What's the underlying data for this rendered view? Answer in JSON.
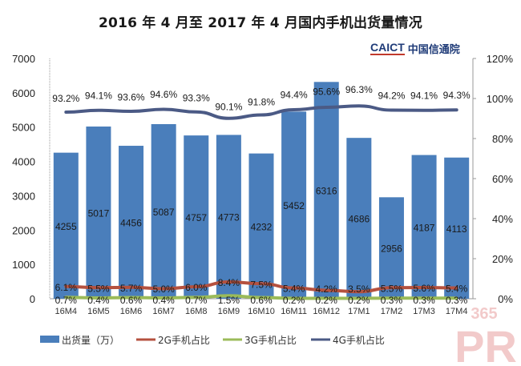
{
  "chart_data": {
    "type": "bar",
    "title": "2016 年 4 月至 2017 年 4 月国内手机出货量情况",
    "categories": [
      "16M4",
      "16M5",
      "16M6",
      "16M7",
      "16M8",
      "16M9",
      "16M10",
      "16M11",
      "16M12",
      "17M1",
      "17M2",
      "17M3",
      "17M4"
    ],
    "left_axis": {
      "ylim": [
        0,
        7000
      ],
      "ticks": [
        "0",
        "1000",
        "2000",
        "3000",
        "4000",
        "5000",
        "6000",
        "7000"
      ],
      "tick_values": [
        0,
        1000,
        2000,
        3000,
        4000,
        5000,
        6000,
        7000
      ]
    },
    "right_axis": {
      "ylim": [
        0,
        120
      ],
      "ticks": [
        "0%",
        "20%",
        "40%",
        "60%",
        "80%",
        "100%",
        "120%"
      ],
      "tick_values": [
        0,
        20,
        40,
        60,
        80,
        100,
        120
      ]
    },
    "series": [
      {
        "name": "出货量（万）",
        "type": "bar",
        "axis": "left",
        "color": "#4a7ebb",
        "values": [
          4255,
          5017,
          4456,
          5087,
          4757,
          4773,
          4232,
          5452,
          6316,
          4686,
          2956,
          4187,
          4113
        ],
        "labels": [
          "4255",
          "5017",
          "4456",
          "5087",
          "4757",
          "4773",
          "4232",
          "5452",
          "6316",
          "4686",
          "2956",
          "4187",
          "4113"
        ]
      },
      {
        "name": "2G手机占比",
        "type": "line",
        "axis": "right",
        "color": "#b5513f",
        "values": [
          6.1,
          5.5,
          5.7,
          5.0,
          6.0,
          8.4,
          7.5,
          5.4,
          4.2,
          3.5,
          5.5,
          5.6,
          5.4
        ],
        "labels": [
          "6.1%",
          "5.5%",
          "5.7%",
          "5.0%",
          "6.0%",
          "8.4%",
          "7.5%",
          "5.4%",
          "4.2%",
          "3.5%",
          "5.5%",
          "5.6%",
          "5.4%"
        ]
      },
      {
        "name": "3G手机占比",
        "type": "line",
        "axis": "right",
        "color": "#9bbb59",
        "values": [
          0.7,
          0.4,
          0.6,
          0.4,
          0.7,
          1.5,
          0.6,
          0.2,
          0.2,
          0.2,
          0.3,
          0.3,
          0.3
        ],
        "labels": [
          "0.7%",
          "0.4%",
          "0.6%",
          "0.4%",
          "0.7%",
          "1.5%",
          "0.6%",
          "0.2%",
          "0.2%",
          "0.2%",
          "0.3%",
          "0.3%",
          "0.3%"
        ]
      },
      {
        "name": "4G手机占比",
        "type": "line",
        "axis": "right",
        "color": "#4b5a85",
        "values": [
          93.2,
          94.1,
          93.6,
          94.6,
          93.3,
          90.1,
          91.8,
          94.4,
          95.6,
          96.3,
          94.2,
          94.1,
          94.3
        ],
        "labels": [
          "93.2%",
          "94.1%",
          "93.6%",
          "94.6%",
          "93.3%",
          "90.1%",
          "91.8%",
          "94.4%",
          "95.6%",
          "96.3%",
          "94.2%",
          "94.1%",
          "94.3%"
        ]
      }
    ],
    "legend": {
      "placement": "bottom"
    },
    "grid": false
  },
  "logo": {
    "brand": "CAICT",
    "name_cn": "中国信通院"
  },
  "watermark": {
    "text": "PR",
    "sub": "365"
  }
}
